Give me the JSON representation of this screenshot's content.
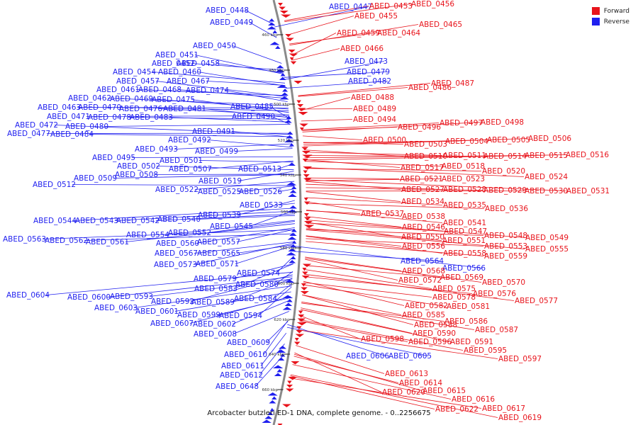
{
  "legend": {
    "items": [
      {
        "label": "Forward",
        "color": "#e8131b"
      },
      {
        "label": "Reverse",
        "color": "#1f1fef"
      }
    ]
  },
  "caption": "Arcobacter butzleri ED-1 DNA, complete genome. - 0..2256675",
  "ticks": [
    "460 kbp",
    "480 kbp",
    "500 kbp",
    "520 kbp",
    "540 kbp",
    "560 kbp",
    "580 kbp",
    "600 kbp",
    "620 kbp",
    "640 kbp",
    "660 kbp"
  ],
  "reverse_labels": [
    "ABED_0448",
    "ABED_0449",
    "ABED_0447",
    "ABED_0450",
    "ABED_0451",
    "ABED_0452",
    "ABED_0458",
    "ABED_0454",
    "ABED_0460",
    "ABED_0457",
    "ABED_0467",
    "ABED_0461",
    "ABED_0468",
    "ABED_0474",
    "ABED_0473",
    "ABED_0479",
    "ABED_0482",
    "ABED_0462",
    "ABED_0469",
    "ABED_0475",
    "ABED_0463",
    "ABED_0470",
    "ABED_0476",
    "ABED_0481",
    "ABED_0485",
    "ABED_0471",
    "ABED_0478",
    "ABED_0483",
    "ABED_0490",
    "ABED_0472",
    "ABED_0480",
    "ABED_0477",
    "ABED_0484",
    "ABED_0491",
    "ABED_0492",
    "ABED_0493",
    "ABED_0499",
    "ABED_0495",
    "ABED_0501",
    "ABED_0502",
    "ABED_0507",
    "ABED_0513",
    "ABED_0509",
    "ABED_0508",
    "ABED_0512",
    "ABED_0519",
    "ABED_0522",
    "ABED_0525",
    "ABED_0526",
    "ABED_0533",
    "ABED_0539",
    "ABED_0544",
    "ABED_0543",
    "ABED_0542",
    "ABED_0540",
    "ABED_0545",
    "ABED_0554",
    "ABED_0552",
    "ABED_0563",
    "ABED_0562",
    "ABED_0561",
    "ABED_0560",
    "ABED_0557",
    "ABED_0567",
    "ABED_0565",
    "ABED_0573",
    "ABED_0571",
    "ABED_0574",
    "ABED_0579",
    "ABED_0580",
    "ABED_0583",
    "ABED_0604",
    "ABED_0600",
    "ABED_0593",
    "ABED_0584",
    "ABED_0592",
    "ABED_0589",
    "ABED_0603",
    "ABED_0601",
    "ABED_0599",
    "ABED_0594",
    "ABED_0607",
    "ABED_0602",
    "ABED_0608",
    "ABED_0609",
    "ABED_0610",
    "ABED_0611",
    "ABED_0612",
    "ABED_0648",
    "ABED_0564",
    "ABED_0566",
    "ABED_0606",
    "ABED_0605"
  ],
  "forward_labels": [
    "ABED_0453",
    "ABED_0456",
    "ABED_0455",
    "ABED_0465",
    "ABED_0459",
    "ABED_0464",
    "ABED_0466",
    "ABED_0486",
    "ABED_0487",
    "ABED_0488",
    "ABED_0489",
    "ABED_0494",
    "ABED_0496",
    "ABED_0497",
    "ABED_0498",
    "ABED_0500",
    "ABED_0503",
    "ABED_0504",
    "ABED_0505",
    "ABED_0506",
    "ABED_0510",
    "ABED_0511",
    "ABED_0514",
    "ABED_0515",
    "ABED_0516",
    "ABED_0517",
    "ABED_0518",
    "ABED_0520",
    "ABED_0521",
    "ABED_0523",
    "ABED_0524",
    "ABED_0527",
    "ABED_0528",
    "ABED_0529",
    "ABED_0530",
    "ABED_0531",
    "ABED_0534",
    "ABED_0535",
    "ABED_0536",
    "ABED_0537",
    "ABED_0538",
    "ABED_0541",
    "ABED_0546",
    "ABED_0547",
    "ABED_0548",
    "ABED_0549",
    "ABED_0550",
    "ABED_0551",
    "ABED_0556",
    "ABED_0553",
    "ABED_0555",
    "ABED_0558",
    "ABED_0559",
    "ABED_0568",
    "ABED_0569",
    "ABED_0570",
    "ABED_0572",
    "ABED_0575",
    "ABED_0576",
    "ABED_0578",
    "ABED_0577",
    "ABED_0582",
    "ABED_0581",
    "ABED_0585",
    "ABED_0586",
    "ABED_0588",
    "ABED_0587",
    "ABED_0590",
    "ABED_0598",
    "ABED_0596",
    "ABED_0591",
    "ABED_0595",
    "ABED_0597",
    "ABED_0613",
    "ABED_0614",
    "ABED_0620",
    "ABED_0615",
    "ABED_0616",
    "ABED_0622",
    "ABED_0617",
    "ABED_0619"
  ]
}
